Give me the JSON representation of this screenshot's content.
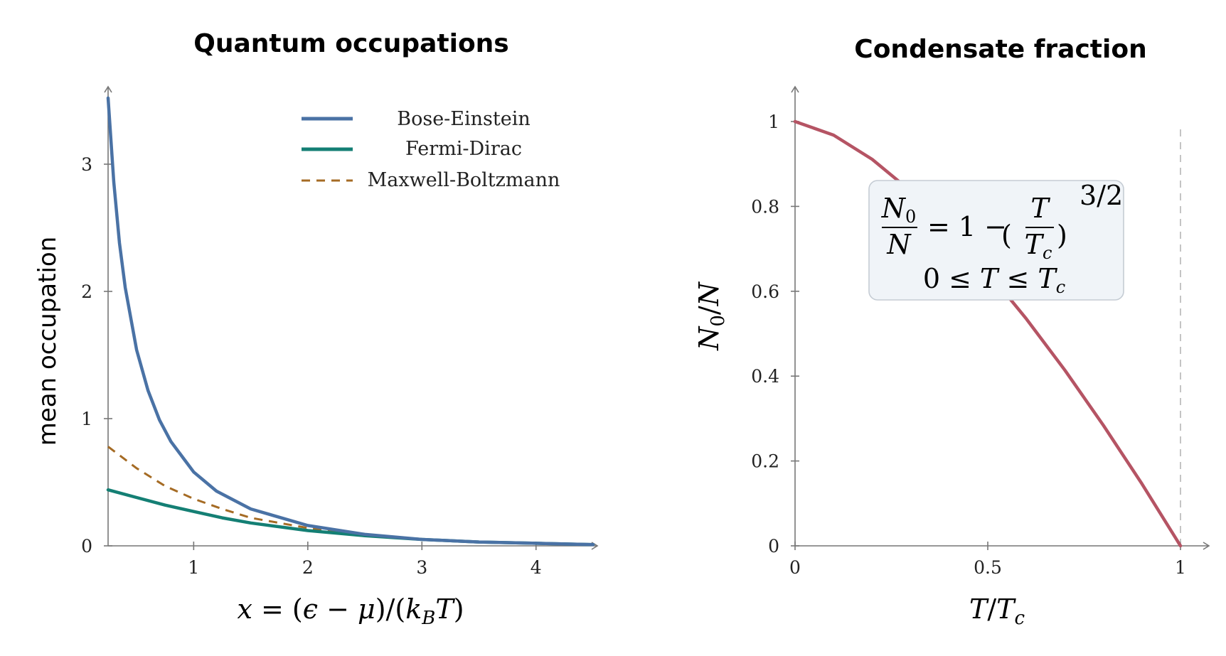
{
  "chart_data": [
    {
      "type": "line",
      "title": "Quantum occupations",
      "xlabel": "x = (ϵ − μ)/(k_B T)",
      "ylabel": "mean occupation",
      "xlim": [
        0.25,
        4.5
      ],
      "ylim": [
        0,
        3.6
      ],
      "x_ticks": [
        1,
        2,
        3,
        4
      ],
      "y_ticks": [
        0,
        1,
        2,
        3
      ],
      "legend_position": "top-right",
      "series": [
        {
          "name": "Bose-Einstein",
          "color": "#4a72a5",
          "style": "solid",
          "x": [
            0.25,
            0.3,
            0.35,
            0.4,
            0.5,
            0.6,
            0.7,
            0.8,
            1.0,
            1.2,
            1.5,
            2.0,
            2.5,
            3.0,
            3.5,
            4.0,
            4.5
          ],
          "y": [
            3.52,
            2.86,
            2.38,
            2.03,
            1.54,
            1.22,
            0.99,
            0.82,
            0.58,
            0.43,
            0.29,
            0.16,
            0.09,
            0.05,
            0.03,
            0.02,
            0.01
          ]
        },
        {
          "name": "Fermi-Dirac",
          "color": "#147f74",
          "style": "solid",
          "x": [
            0.25,
            0.5,
            0.75,
            1.0,
            1.25,
            1.5,
            2.0,
            2.5,
            3.0,
            3.5,
            4.0,
            4.5
          ],
          "y": [
            0.44,
            0.38,
            0.32,
            0.27,
            0.22,
            0.18,
            0.12,
            0.08,
            0.05,
            0.03,
            0.02,
            0.01
          ]
        },
        {
          "name": "Maxwell-Boltzmann",
          "color": "#a56b24",
          "style": "dashed",
          "x": [
            0.25,
            0.5,
            0.75,
            1.0,
            1.25,
            1.5,
            2.0,
            2.5,
            3.0,
            3.5,
            4.0,
            4.5
          ],
          "y": [
            0.78,
            0.61,
            0.47,
            0.37,
            0.29,
            0.22,
            0.14,
            0.08,
            0.05,
            0.03,
            0.02,
            0.01
          ]
        }
      ]
    },
    {
      "type": "line",
      "title": "Condensate fraction",
      "xlabel": "T/T_c",
      "ylabel": "N_0/N",
      "xlim": [
        0,
        1.07
      ],
      "ylim": [
        0,
        1.07
      ],
      "x_ticks": [
        0,
        0.5,
        1
      ],
      "y_ticks": [
        0,
        0.2,
        0.4,
        0.6,
        0.8,
        1
      ],
      "reference_line": {
        "x": 1,
        "style": "dashed"
      },
      "annotation": {
        "line1": "N_0/N = 1 − (T/T_c)^{3/2}",
        "line2": "0 ≤ T ≤ T_c"
      },
      "series": [
        {
          "color": "#b55464",
          "style": "solid",
          "x": [
            0,
            0.1,
            0.2,
            0.3,
            0.4,
            0.5,
            0.6,
            0.7,
            0.8,
            0.9,
            1.0
          ],
          "y": [
            1.0,
            0.968,
            0.911,
            0.836,
            0.747,
            0.646,
            0.535,
            0.414,
            0.284,
            0.146,
            0.0
          ]
        }
      ]
    }
  ]
}
